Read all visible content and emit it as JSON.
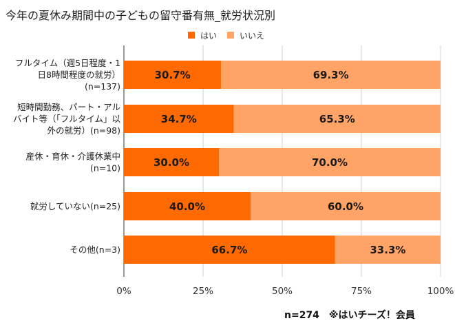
{
  "chart_data": {
    "type": "bar",
    "orientation": "horizontal",
    "stacked": true,
    "title": "今年の夏休み期間中の子どもの留守番有無_就労状況別",
    "categories": [
      [
        "フルタイム（週5日程度・1",
        "日8時間程度の就労）",
        "(n=137)"
      ],
      [
        "短時間勤務、パート・アル",
        "バイト等（「フルタイム」以",
        "外の就労）(n=98)"
      ],
      [
        "産休・育休・介護休業中",
        "(n=10)"
      ],
      [
        "就労していない(n=25)"
      ],
      [
        "その他(n=3)"
      ]
    ],
    "series": [
      {
        "name": "はい",
        "color": "#ff6a00",
        "values": [
          30.7,
          34.7,
          30.0,
          40.0,
          66.7
        ]
      },
      {
        "name": "いいえ",
        "color": "#ffa466",
        "values": [
          69.3,
          65.3,
          70.0,
          60.0,
          33.3
        ]
      }
    ],
    "data_labels": [
      [
        "30.7%",
        "34.7%",
        "30.0%",
        "40.0%",
        "66.7%"
      ],
      [
        "69.3%",
        "65.3%",
        "70.0%",
        "60.0%",
        "33.3%"
      ]
    ],
    "xlim": [
      0,
      100
    ],
    "xticks": [
      "0%",
      "25%",
      "50%",
      "75%",
      "100%"
    ],
    "grid": true,
    "legend": "top-right",
    "note": "n=274　※はいチーズ！会員"
  }
}
